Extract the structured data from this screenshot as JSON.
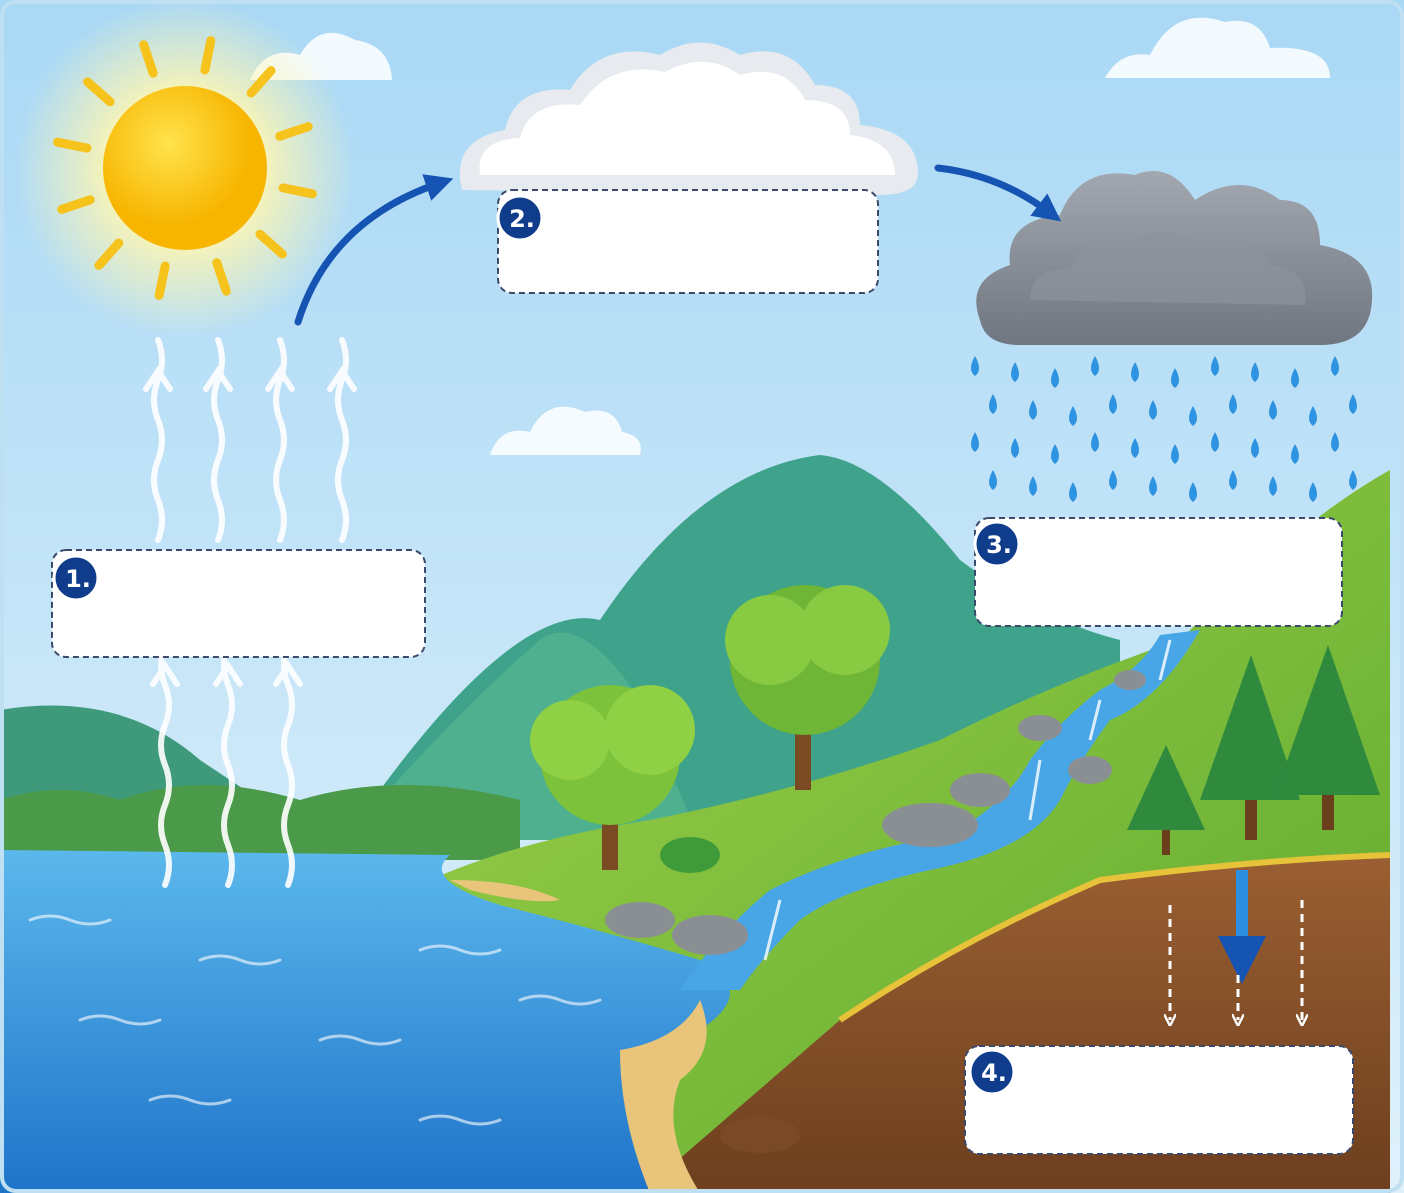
{
  "steps": [
    {
      "number": "1."
    },
    {
      "number": "2."
    },
    {
      "number": "3."
    },
    {
      "number": "4."
    }
  ]
}
